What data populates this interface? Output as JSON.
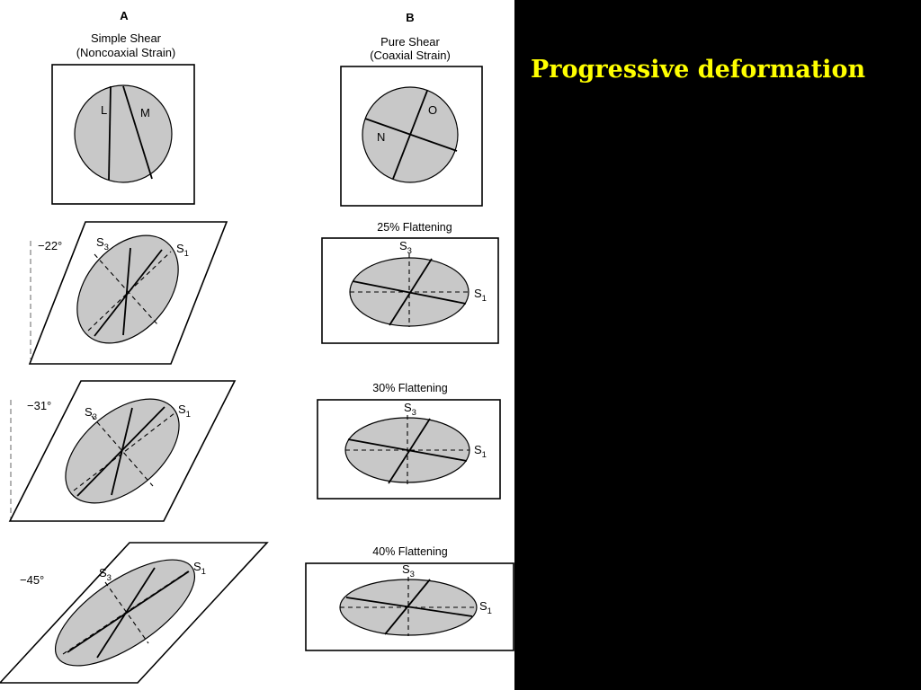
{
  "slide": {
    "title": "Progressive deformation",
    "title_color": "#ffff00",
    "background": "#000000"
  },
  "figure": {
    "column_a": {
      "letter": "A",
      "title": "Simple Shear",
      "subtitle": "(Noncoaxial Strain)",
      "initial_labels": [
        "L",
        "M"
      ],
      "stages": [
        {
          "angle": "−22°",
          "axis_min": "S",
          "axis_min_sub": "3",
          "axis_max": "S",
          "axis_max_sub": "1"
        },
        {
          "angle": "−31°",
          "axis_min": "S",
          "axis_min_sub": "3",
          "axis_max": "S",
          "axis_max_sub": "1"
        },
        {
          "angle": "−45°",
          "axis_min": "S",
          "axis_min_sub": "3",
          "axis_max": "S",
          "axis_max_sub": "1"
        }
      ]
    },
    "column_b": {
      "letter": "B",
      "title": "Pure Shear",
      "subtitle": "(Coaxial Strain)",
      "initial_labels": [
        "O",
        "N"
      ],
      "stages": [
        {
          "label": "25% Flattening",
          "axis_min": "S",
          "axis_min_sub": "3",
          "axis_max": "S",
          "axis_max_sub": "1"
        },
        {
          "label": "30% Flattening",
          "axis_min": "S",
          "axis_min_sub": "3",
          "axis_max": "S",
          "axis_max_sub": "1"
        },
        {
          "label": "40% Flattening",
          "axis_min": "S",
          "axis_min_sub": "3",
          "axis_max": "S",
          "axis_max_sub": "1"
        }
      ]
    }
  }
}
